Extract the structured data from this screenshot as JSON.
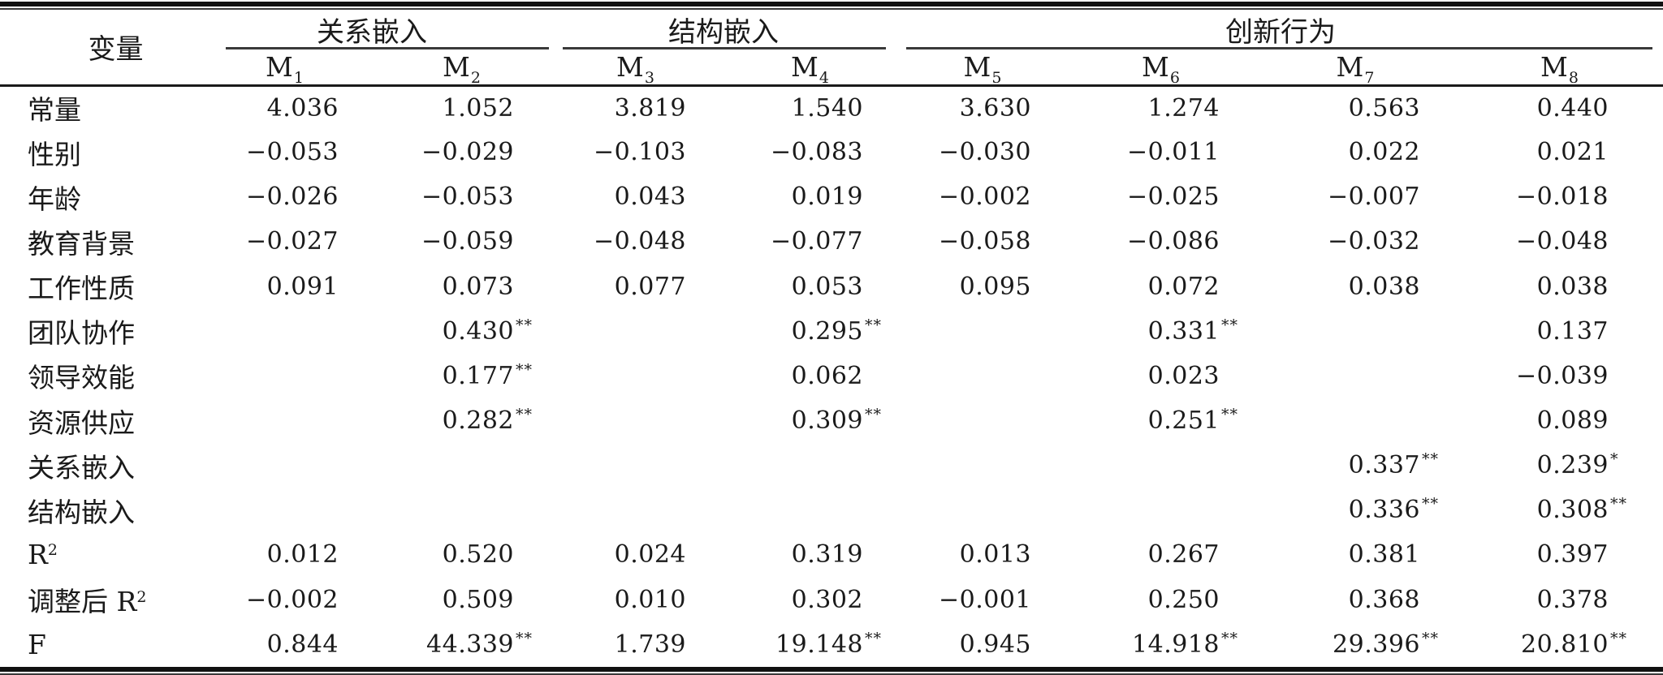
{
  "table": {
    "corner_label": "变量",
    "groups": [
      {
        "label": "关系嵌入"
      },
      {
        "label": "结构嵌入"
      },
      {
        "label": "创新行为"
      }
    ],
    "models": [
      {
        "base": "M",
        "sub": "1"
      },
      {
        "base": "M",
        "sub": "2"
      },
      {
        "base": "M",
        "sub": "3"
      },
      {
        "base": "M",
        "sub": "4"
      },
      {
        "base": "M",
        "sub": "5"
      },
      {
        "base": "M",
        "sub": "6"
      },
      {
        "base": "M",
        "sub": "7"
      },
      {
        "base": "M",
        "sub": "8"
      }
    ],
    "rows": [
      {
        "label": "常量",
        "label_sup": "",
        "cells": [
          {
            "v": "4.036",
            "s": ""
          },
          {
            "v": "1.052",
            "s": ""
          },
          {
            "v": "3.819",
            "s": ""
          },
          {
            "v": "1.540",
            "s": ""
          },
          {
            "v": "3.630",
            "s": ""
          },
          {
            "v": "1.274",
            "s": ""
          },
          {
            "v": "0.563",
            "s": ""
          },
          {
            "v": "0.440",
            "s": ""
          }
        ]
      },
      {
        "label": "性别",
        "label_sup": "",
        "cells": [
          {
            "v": "−0.053",
            "s": ""
          },
          {
            "v": "−0.029",
            "s": ""
          },
          {
            "v": "−0.103",
            "s": ""
          },
          {
            "v": "−0.083",
            "s": ""
          },
          {
            "v": "−0.030",
            "s": ""
          },
          {
            "v": "−0.011",
            "s": ""
          },
          {
            "v": "0.022",
            "s": ""
          },
          {
            "v": "0.021",
            "s": ""
          }
        ]
      },
      {
        "label": "年龄",
        "label_sup": "",
        "cells": [
          {
            "v": "−0.026",
            "s": ""
          },
          {
            "v": "−0.053",
            "s": ""
          },
          {
            "v": "0.043",
            "s": ""
          },
          {
            "v": "0.019",
            "s": ""
          },
          {
            "v": "−0.002",
            "s": ""
          },
          {
            "v": "−0.025",
            "s": ""
          },
          {
            "v": "−0.007",
            "s": ""
          },
          {
            "v": "−0.018",
            "s": ""
          }
        ]
      },
      {
        "label": "教育背景",
        "label_sup": "",
        "cells": [
          {
            "v": "−0.027",
            "s": ""
          },
          {
            "v": "−0.059",
            "s": ""
          },
          {
            "v": "−0.048",
            "s": ""
          },
          {
            "v": "−0.077",
            "s": ""
          },
          {
            "v": "−0.058",
            "s": ""
          },
          {
            "v": "−0.086",
            "s": ""
          },
          {
            "v": "−0.032",
            "s": ""
          },
          {
            "v": "−0.048",
            "s": ""
          }
        ]
      },
      {
        "label": "工作性质",
        "label_sup": "",
        "cells": [
          {
            "v": "0.091",
            "s": ""
          },
          {
            "v": "0.073",
            "s": ""
          },
          {
            "v": "0.077",
            "s": ""
          },
          {
            "v": "0.053",
            "s": ""
          },
          {
            "v": "0.095",
            "s": ""
          },
          {
            "v": "0.072",
            "s": ""
          },
          {
            "v": "0.038",
            "s": ""
          },
          {
            "v": "0.038",
            "s": ""
          }
        ]
      },
      {
        "label": "团队协作",
        "label_sup": "",
        "cells": [
          {
            "v": "",
            "s": ""
          },
          {
            "v": "0.430",
            "s": "**"
          },
          {
            "v": "",
            "s": ""
          },
          {
            "v": "0.295",
            "s": "**"
          },
          {
            "v": "",
            "s": ""
          },
          {
            "v": "0.331",
            "s": "**"
          },
          {
            "v": "",
            "s": ""
          },
          {
            "v": "0.137",
            "s": ""
          }
        ]
      },
      {
        "label": "领导效能",
        "label_sup": "",
        "cells": [
          {
            "v": "",
            "s": ""
          },
          {
            "v": "0.177",
            "s": "**"
          },
          {
            "v": "",
            "s": ""
          },
          {
            "v": "0.062",
            "s": ""
          },
          {
            "v": "",
            "s": ""
          },
          {
            "v": "0.023",
            "s": ""
          },
          {
            "v": "",
            "s": ""
          },
          {
            "v": "−0.039",
            "s": ""
          }
        ]
      },
      {
        "label": "资源供应",
        "label_sup": "",
        "cells": [
          {
            "v": "",
            "s": ""
          },
          {
            "v": "0.282",
            "s": "**"
          },
          {
            "v": "",
            "s": ""
          },
          {
            "v": "0.309",
            "s": "**"
          },
          {
            "v": "",
            "s": ""
          },
          {
            "v": "0.251",
            "s": "**"
          },
          {
            "v": "",
            "s": ""
          },
          {
            "v": "0.089",
            "s": ""
          }
        ]
      },
      {
        "label": "关系嵌入",
        "label_sup": "",
        "cells": [
          {
            "v": "",
            "s": ""
          },
          {
            "v": "",
            "s": ""
          },
          {
            "v": "",
            "s": ""
          },
          {
            "v": "",
            "s": ""
          },
          {
            "v": "",
            "s": ""
          },
          {
            "v": "",
            "s": ""
          },
          {
            "v": "0.337",
            "s": "**"
          },
          {
            "v": "0.239",
            "s": "*"
          }
        ]
      },
      {
        "label": "结构嵌入",
        "label_sup": "",
        "cells": [
          {
            "v": "",
            "s": ""
          },
          {
            "v": "",
            "s": ""
          },
          {
            "v": "",
            "s": ""
          },
          {
            "v": "",
            "s": ""
          },
          {
            "v": "",
            "s": ""
          },
          {
            "v": "",
            "s": ""
          },
          {
            "v": "0.336",
            "s": "**"
          },
          {
            "v": "0.308",
            "s": "**"
          }
        ]
      },
      {
        "label": "R",
        "label_sup": "2",
        "cells": [
          {
            "v": "0.012",
            "s": ""
          },
          {
            "v": "0.520",
            "s": ""
          },
          {
            "v": "0.024",
            "s": ""
          },
          {
            "v": "0.319",
            "s": ""
          },
          {
            "v": "0.013",
            "s": ""
          },
          {
            "v": "0.267",
            "s": ""
          },
          {
            "v": "0.381",
            "s": ""
          },
          {
            "v": "0.397",
            "s": ""
          }
        ]
      },
      {
        "label": "调整后 R",
        "label_sup": "2",
        "cells": [
          {
            "v": "−0.002",
            "s": ""
          },
          {
            "v": "0.509",
            "s": ""
          },
          {
            "v": "0.010",
            "s": ""
          },
          {
            "v": "0.302",
            "s": ""
          },
          {
            "v": "−0.001",
            "s": ""
          },
          {
            "v": "0.250",
            "s": ""
          },
          {
            "v": "0.368",
            "s": ""
          },
          {
            "v": "0.378",
            "s": ""
          }
        ]
      },
      {
        "label": "F",
        "label_sup": "",
        "cells": [
          {
            "v": "0.844",
            "s": ""
          },
          {
            "v": "44.339",
            "s": "**"
          },
          {
            "v": "1.739",
            "s": ""
          },
          {
            "v": "19.148",
            "s": "**"
          },
          {
            "v": "0.945",
            "s": ""
          },
          {
            "v": "14.918",
            "s": "**"
          },
          {
            "v": "29.396",
            "s": "**"
          },
          {
            "v": "20.810",
            "s": "**"
          }
        ]
      }
    ]
  },
  "colors": {
    "text": "#1a1a1a",
    "rule_thick": "#111111",
    "rule_thin": "#3a3a3a",
    "background": "#ffffff"
  }
}
